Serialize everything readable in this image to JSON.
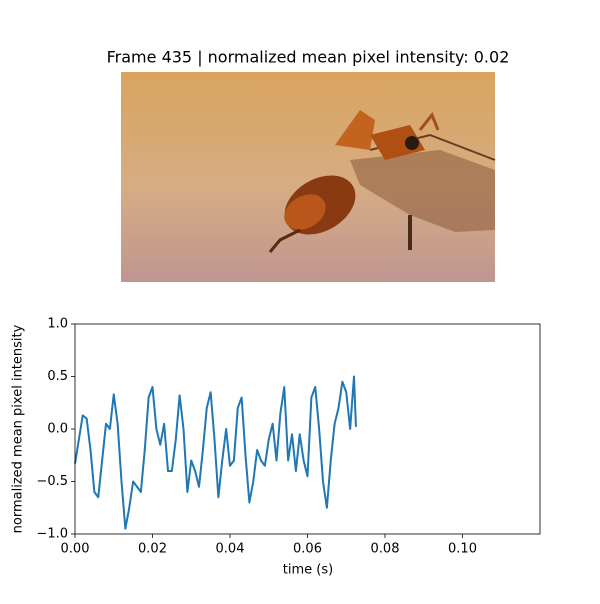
{
  "chart_data": {
    "type": "line",
    "title": "Frame 435 | normalized mean pixel intensity: 0.02",
    "x_label": "time (s)",
    "y_label": "normalized mean pixel intensity",
    "color": "#1f77b4",
    "xlim": [
      0,
      0.12
    ],
    "ylim": [
      -1,
      1
    ],
    "xticks": [
      {
        "value": 0,
        "label": "0.00"
      },
      {
        "value": 0.02,
        "label": "0.02"
      },
      {
        "value": 0.04,
        "label": "0.04"
      },
      {
        "value": 0.06,
        "label": "0.06"
      },
      {
        "value": 0.08,
        "label": "0.08"
      },
      {
        "value": 0.1,
        "label": "0.10"
      }
    ],
    "yticks": [
      {
        "value": -1,
        "label": "−1.0"
      },
      {
        "value": -0.5,
        "label": "−0.5"
      },
      {
        "value": 0,
        "label": "0.0"
      },
      {
        "value": 0.5,
        "label": "0.5"
      },
      {
        "value": 1,
        "label": "1.0"
      }
    ],
    "x": [
      0,
      0.001,
      0.002,
      0.003,
      0.004,
      0.005,
      0.006,
      0.007,
      0.008,
      0.009,
      0.01,
      0.011,
      0.012,
      0.013,
      0.014,
      0.015,
      0.016,
      0.017,
      0.018,
      0.019,
      0.02,
      0.021,
      0.022,
      0.023,
      0.024,
      0.025,
      0.026,
      0.027,
      0.028,
      0.029,
      0.03,
      0.031,
      0.032,
      0.033,
      0.034,
      0.035,
      0.036,
      0.037,
      0.038,
      0.039,
      0.04,
      0.041,
      0.042,
      0.043,
      0.044,
      0.045,
      0.046,
      0.047,
      0.048,
      0.049,
      0.05,
      0.051,
      0.052,
      0.053,
      0.054,
      0.055,
      0.056,
      0.057,
      0.058,
      0.059,
      0.06,
      0.061,
      0.062,
      0.063,
      0.064,
      0.065,
      0.066,
      0.067,
      0.068,
      0.069,
      0.07,
      0.071,
      0.072,
      0.0725
    ],
    "values": [
      -0.33,
      -0.1,
      0.13,
      0.1,
      -0.2,
      -0.6,
      -0.65,
      -0.3,
      0.05,
      0.0,
      0.33,
      0.05,
      -0.5,
      -0.95,
      -0.75,
      -0.5,
      -0.55,
      -0.6,
      -0.2,
      0.3,
      0.4,
      0.0,
      -0.15,
      0.05,
      -0.4,
      -0.4,
      -0.1,
      0.32,
      0.0,
      -0.6,
      -0.3,
      -0.4,
      -0.55,
      -0.2,
      0.2,
      0.35,
      -0.1,
      -0.65,
      -0.3,
      0.0,
      -0.35,
      -0.3,
      0.2,
      0.3,
      -0.25,
      -0.7,
      -0.5,
      -0.2,
      -0.3,
      -0.35,
      -0.1,
      0.05,
      -0.3,
      0.15,
      0.4,
      -0.3,
      -0.05,
      -0.4,
      -0.05,
      -0.3,
      -0.45,
      0.3,
      0.4,
      0.0,
      -0.5,
      -0.75,
      -0.3,
      0.05,
      0.2,
      0.45,
      0.35,
      0.0,
      0.5,
      0.02
    ]
  }
}
